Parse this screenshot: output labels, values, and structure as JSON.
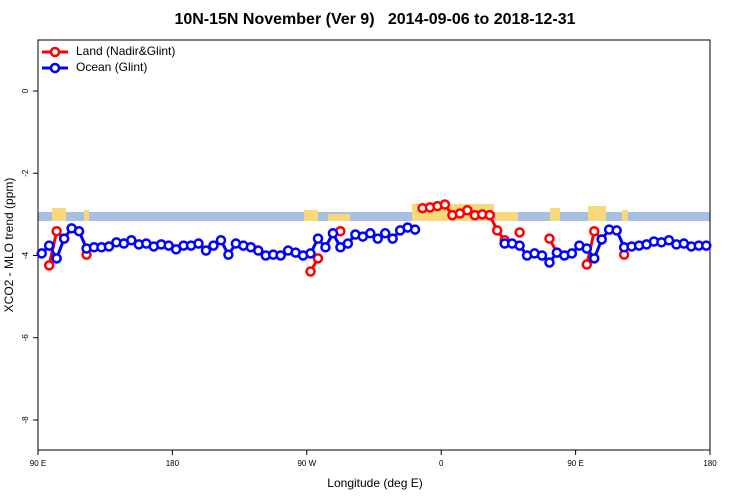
{
  "chart_data": {
    "type": "line",
    "title": "10N-15N November (Ver 9)   2014-09-06 to 2018-12-31",
    "x_label": "Longitude (deg E)",
    "y_label": "XCO2 - MLO trend (ppm)",
    "legend": "top-left",
    "xlim": [
      90,
      540
    ],
    "xticks": [
      {
        "value": 90,
        "label": "90 E"
      },
      180,
      {
        "value": 270,
        "label": "90 W"
      },
      {
        "value": 360,
        "label": "0"
      },
      {
        "value": 450,
        "label": "90 E"
      },
      {
        "value": 540,
        "label": "180"
      }
    ],
    "ylim": [
      -8.73,
      1.24
    ],
    "yticks": [
      0,
      -2,
      -4,
      -6,
      -8
    ],
    "x": [
      92.5,
      97.5,
      102.5,
      107.5,
      112.5,
      117.5,
      122.5,
      127.5,
      132.5,
      137.5,
      142.5,
      147.5,
      152.5,
      157.5,
      162.5,
      167.5,
      172.5,
      177.5,
      182.5,
      187.5,
      192.5,
      197.5,
      202.5,
      207.5,
      212.5,
      217.5,
      222.5,
      227.5,
      232.5,
      237.5,
      242.5,
      247.5,
      252.5,
      257.5,
      262.5,
      267.5,
      272.5,
      277.5,
      282.5,
      287.5,
      292.5,
      297.5,
      302.5,
      307.5,
      312.5,
      317.5,
      322.5,
      327.5,
      332.5,
      337.5,
      342.5,
      347.5,
      352.5,
      357.5,
      362.5,
      367.5,
      372.5,
      377.5,
      382.5,
      387.5,
      392.5,
      397.5,
      402.5,
      407.5,
      412.5,
      417.5,
      422.5,
      427.5,
      432.5,
      437.5,
      442.5,
      447.5,
      452.5,
      457.5,
      462.5,
      467.5,
      472.5,
      477.5,
      482.5,
      487.5,
      492.5,
      497.5,
      502.5,
      507.5,
      512.5,
      517.5,
      522.5,
      527.5,
      532.5,
      537.5
    ],
    "series": [
      {
        "name": "Land (Nadir&Glint)",
        "color": "#ff0000",
        "values": [
          null,
          -4.24,
          -3.41,
          -3.59,
          null,
          null,
          -3.98,
          null,
          null,
          null,
          null,
          null,
          null,
          null,
          null,
          null,
          null,
          null,
          null,
          null,
          null,
          null,
          null,
          null,
          null,
          null,
          null,
          null,
          null,
          null,
          null,
          null,
          null,
          null,
          null,
          null,
          -4.39,
          -4.07,
          null,
          null,
          -3.41,
          null,
          null,
          null,
          null,
          null,
          null,
          null,
          null,
          null,
          null,
          -2.85,
          -2.83,
          -2.8,
          -2.76,
          -3.02,
          -2.98,
          -2.9,
          -3.02,
          -3.0,
          -3.02,
          -3.39,
          -3.63,
          null,
          -3.44,
          null,
          null,
          null,
          -3.59,
          -3.93,
          null,
          null,
          null,
          -4.22,
          -3.41,
          -3.61,
          null,
          null,
          -3.98,
          null,
          null,
          null,
          null,
          null,
          null,
          null,
          null,
          null,
          null,
          null
        ]
      },
      {
        "name": "Ocean (Glint)",
        "color": "#0000ff",
        "values": [
          -3.95,
          -3.76,
          -4.07,
          -3.59,
          -3.34,
          -3.41,
          -3.83,
          -3.8,
          -3.8,
          -3.78,
          -3.68,
          -3.71,
          -3.63,
          -3.73,
          -3.71,
          -3.78,
          -3.73,
          -3.76,
          -3.85,
          -3.76,
          -3.76,
          -3.71,
          -3.88,
          -3.76,
          -3.63,
          -3.98,
          -3.71,
          -3.76,
          -3.8,
          -3.88,
          -4.0,
          -3.98,
          -4.0,
          -3.88,
          -3.93,
          -4.0,
          -3.95,
          -3.59,
          -3.8,
          -3.46,
          -3.8,
          -3.71,
          -3.49,
          -3.54,
          -3.46,
          -3.59,
          -3.46,
          -3.59,
          -3.39,
          -3.32,
          -3.37,
          null,
          null,
          null,
          null,
          null,
          null,
          null,
          null,
          null,
          null,
          null,
          -3.71,
          -3.71,
          -3.76,
          -4.0,
          -3.95,
          -4.0,
          -4.17,
          -3.93,
          -4.0,
          -3.95,
          -3.76,
          -3.83,
          -4.07,
          -3.61,
          -3.37,
          -3.39,
          -3.8,
          -3.78,
          -3.76,
          -3.73,
          -3.66,
          -3.68,
          -3.63,
          -3.73,
          -3.71,
          -3.78,
          -3.76,
          -3.76
        ]
      }
    ]
  }
}
